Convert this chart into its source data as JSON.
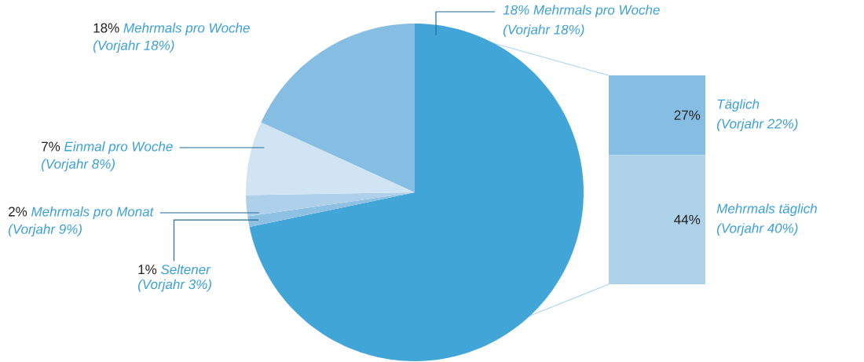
{
  "chart_data": [
    {
      "type": "pie",
      "categories": [
        null,
        "Seltener",
        "Mehrmals pro Monat",
        "Einmal pro Woche",
        "Mehrmals pro Woche"
      ],
      "values": [
        71,
        1,
        2,
        7,
        18
      ],
      "colors": [
        "#42a5d8",
        "#8dc0e3",
        "#aed0ea",
        "#d0e4f3",
        "#86bde2"
      ],
      "value_labels": [
        null,
        "1%",
        "2%",
        "7%",
        "18%"
      ],
      "annotations": [
        "18% Mehrmals pro Woche",
        "(Vorjahr 18%)",
        "(Vorjahr 3%)",
        "(Vorjahr 9%)",
        "(Vorjahr 8%)",
        "(Vorjahr 18%)"
      ]
    },
    {
      "type": "bar",
      "stacked": true,
      "categories": [
        null
      ],
      "series": [
        {
          "name": "Mehrmals täglich",
          "color": "#aed2ea",
          "values": [
            44
          ],
          "value_labels": [
            "44%"
          ]
        },
        {
          "name": "Täglich",
          "color": "#86bde2",
          "values": [
            27
          ],
          "value_labels": [
            "27%"
          ]
        }
      ],
      "annotations": [
        "(Vorjahr 40%)",
        "(Vorjahr 22%)"
      ]
    }
  ]
}
